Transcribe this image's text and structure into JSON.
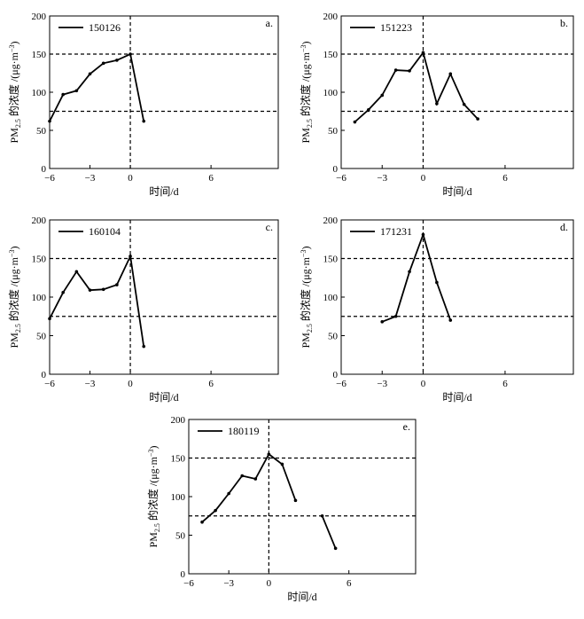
{
  "chart_data": [
    {
      "type": "line",
      "panel_label": "a.",
      "legend": "150126",
      "xlabel": "时间/d",
      "ylabel_main": "PM",
      "ylabel_sub": "2.5",
      "ylabel_rest": " 的浓度 /(μg·m",
      "ylabel_sup": "−3",
      "ylabel_end": ")",
      "xlim": [
        -6,
        11
      ],
      "ylim": [
        0,
        200
      ],
      "xticks": [
        -6,
        -3,
        0,
        6
      ],
      "xtick_labels": [
        "−6",
        "−3",
        "0",
        "6"
      ],
      "yticks": [
        0,
        50,
        100,
        150,
        200
      ],
      "ytick_labels": [
        "0",
        "50",
        "100",
        "150",
        "200"
      ],
      "ref_lines_y": [
        75,
        150
      ],
      "ref_line_x": 0,
      "segments": [
        [
          {
            "x": -6,
            "y": 62
          },
          {
            "x": -5,
            "y": 97
          },
          {
            "x": -4,
            "y": 102
          },
          {
            "x": -3,
            "y": 124
          },
          {
            "x": -2,
            "y": 138
          },
          {
            "x": -1,
            "y": 142
          },
          {
            "x": 0,
            "y": 150
          },
          {
            "x": 1,
            "y": 62
          }
        ]
      ]
    },
    {
      "type": "line",
      "panel_label": "b.",
      "legend": "151223",
      "xlabel": "时间/d",
      "ylabel_main": "PM",
      "ylabel_sub": "2.5",
      "ylabel_rest": " 的浓度 /(μg·m",
      "ylabel_sup": "−3",
      "ylabel_end": ")",
      "xlim": [
        -6,
        11
      ],
      "ylim": [
        0,
        200
      ],
      "xticks": [
        -6,
        -3,
        0,
        6
      ],
      "xtick_labels": [
        "−6",
        "−3",
        "0",
        "6"
      ],
      "yticks": [
        0,
        50,
        100,
        150,
        200
      ],
      "ytick_labels": [
        "0",
        "50",
        "100",
        "150",
        "200"
      ],
      "ref_lines_y": [
        75,
        150
      ],
      "ref_line_x": 0,
      "segments": [
        [
          {
            "x": -5,
            "y": 61
          },
          {
            "x": -4,
            "y": 77
          },
          {
            "x": -3,
            "y": 96
          },
          {
            "x": -2,
            "y": 129
          },
          {
            "x": -1,
            "y": 128
          },
          {
            "x": 0,
            "y": 152
          },
          {
            "x": 1,
            "y": 85
          },
          {
            "x": 2,
            "y": 124
          },
          {
            "x": 3,
            "y": 84
          },
          {
            "x": 4,
            "y": 65
          }
        ]
      ]
    },
    {
      "type": "line",
      "panel_label": "c.",
      "legend": "160104",
      "xlabel": "时间/d",
      "ylabel_main": "PM",
      "ylabel_sub": "2.5",
      "ylabel_rest": " 的浓度 /(μg·m",
      "ylabel_sup": "−3",
      "ylabel_end": ")",
      "xlim": [
        -6,
        11
      ],
      "ylim": [
        0,
        200
      ],
      "xticks": [
        -6,
        -3,
        0,
        6
      ],
      "xtick_labels": [
        "−6",
        "−3",
        "0",
        "6"
      ],
      "yticks": [
        0,
        50,
        100,
        150,
        200
      ],
      "ytick_labels": [
        "0",
        "50",
        "100",
        "150",
        "200"
      ],
      "ref_lines_y": [
        75,
        150
      ],
      "ref_line_x": 0,
      "segments": [
        [
          {
            "x": -6,
            "y": 72
          },
          {
            "x": -5,
            "y": 106
          },
          {
            "x": -4,
            "y": 133
          },
          {
            "x": -3,
            "y": 109
          },
          {
            "x": -2,
            "y": 110
          },
          {
            "x": -1,
            "y": 116
          },
          {
            "x": 0,
            "y": 153
          },
          {
            "x": 1,
            "y": 36
          }
        ]
      ]
    },
    {
      "type": "line",
      "panel_label": "d.",
      "legend": "171231",
      "xlabel": "时间/d",
      "ylabel_main": "PM",
      "ylabel_sub": "2.5",
      "ylabel_rest": " 的浓度 /(μg·m",
      "ylabel_sup": "−3",
      "ylabel_end": ")",
      "xlim": [
        -6,
        11
      ],
      "ylim": [
        0,
        200
      ],
      "xticks": [
        -6,
        -3,
        0,
        6
      ],
      "xtick_labels": [
        "−6",
        "−3",
        "0",
        "6"
      ],
      "yticks": [
        0,
        50,
        100,
        150,
        200
      ],
      "ytick_labels": [
        "0",
        "50",
        "100",
        "150",
        "200"
      ],
      "ref_lines_y": [
        75,
        150
      ],
      "ref_line_x": 0,
      "segments": [
        [
          {
            "x": -3,
            "y": 68
          },
          {
            "x": -2,
            "y": 75
          },
          {
            "x": -1,
            "y": 133
          },
          {
            "x": 0,
            "y": 181
          },
          {
            "x": 1,
            "y": 119
          },
          {
            "x": 2,
            "y": 70
          }
        ]
      ]
    },
    {
      "type": "line",
      "panel_label": "e.",
      "legend": "180119",
      "xlabel": "时间/d",
      "ylabel_main": "PM",
      "ylabel_sub": "2.5",
      "ylabel_rest": " 的浓度 /(μg·m",
      "ylabel_sup": "−3",
      "ylabel_end": ")",
      "xlim": [
        -6,
        11
      ],
      "ylim": [
        0,
        200
      ],
      "xticks": [
        -6,
        -3,
        0,
        6
      ],
      "xtick_labels": [
        "−6",
        "−3",
        "0",
        "6"
      ],
      "yticks": [
        0,
        50,
        100,
        150,
        200
      ],
      "ytick_labels": [
        "0",
        "50",
        "100",
        "150",
        "200"
      ],
      "ref_lines_y": [
        75,
        150
      ],
      "ref_line_x": 0,
      "segments": [
        [
          {
            "x": -5,
            "y": 67
          },
          {
            "x": -4,
            "y": 82
          },
          {
            "x": -3,
            "y": 104
          },
          {
            "x": -2,
            "y": 127
          },
          {
            "x": -1,
            "y": 123
          },
          {
            "x": 0,
            "y": 155
          },
          {
            "x": 1,
            "y": 142
          },
          {
            "x": 2,
            "y": 95
          }
        ],
        [
          {
            "x": 4,
            "y": 75
          },
          {
            "x": 5,
            "y": 33
          }
        ]
      ]
    }
  ]
}
